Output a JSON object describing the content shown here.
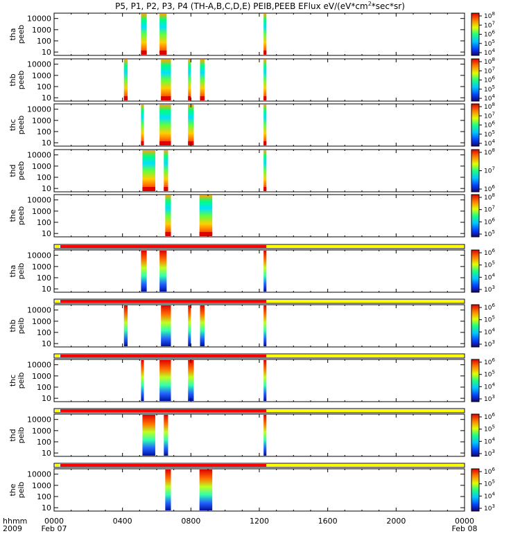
{
  "chart_data": {
    "type": "heatmap",
    "title": "P5, P1, P2, P3, P4 (TH-A,B,C,D,E) PEIB,PEEB EFlux eV/(eV*cm",
    "title_sup": "2",
    "title_tail": "*sec*sr)",
    "x_axis": {
      "label_line1": "hhmm",
      "label_line2": "2009",
      "ticks": [
        {
          "value": 0,
          "label": "0000",
          "sub": "Feb 07"
        },
        {
          "value": 240,
          "label": "0400",
          "sub": ""
        },
        {
          "value": 480,
          "label": "0800",
          "sub": ""
        },
        {
          "value": 720,
          "label": "1200",
          "sub": ""
        },
        {
          "value": 960,
          "label": "1600",
          "sub": ""
        },
        {
          "value": 1200,
          "label": "2000",
          "sub": ""
        },
        {
          "value": 1440,
          "label": "0000",
          "sub": "Feb 08"
        }
      ],
      "range_minutes": [
        0,
        1440
      ]
    },
    "y_axis": {
      "scale": "log",
      "range_eV": [
        5,
        30000
      ],
      "tick_values": [
        10,
        100,
        1000,
        10000
      ],
      "tick_labels": [
        "10",
        "100",
        "1000",
        "10000"
      ]
    },
    "mode_bar": {
      "red_until_minutes": 745,
      "colors": {
        "slow": "#ff0000",
        "fast": "#ffff00"
      }
    },
    "panels": [
      {
        "label1": "tha",
        "label2": "peeb",
        "cbar": [
          "10^4",
          "10^5",
          "10^6",
          "10^7",
          "10^8"
        ],
        "coverage": [
          [
            305,
            325
          ],
          [
            370,
            395
          ],
          [
            735,
            745
          ]
        ]
      },
      {
        "label1": "thb",
        "label2": "peeb",
        "cbar": [
          "10^4",
          "10^5",
          "10^6",
          "10^7",
          "10^8"
        ],
        "coverage": [
          [
            245,
            258
          ],
          [
            375,
            410
          ],
          [
            470,
            480
          ],
          [
            512,
            528
          ],
          [
            735,
            745
          ]
        ]
      },
      {
        "label1": "thc",
        "label2": "peeb",
        "cbar": [
          "10^4",
          "10^5",
          "10^6",
          "10^7",
          "10^8"
        ],
        "coverage": [
          [
            305,
            315
          ],
          [
            370,
            410
          ],
          [
            470,
            490
          ],
          [
            735,
            745
          ]
        ]
      },
      {
        "label1": "thd",
        "label2": "peeb",
        "cbar": [
          "10^6",
          "10^7",
          "10^8"
        ],
        "coverage": [
          [
            310,
            355
          ],
          [
            385,
            400
          ],
          [
            735,
            745
          ]
        ]
      },
      {
        "label1": "the",
        "label2": "peeb",
        "cbar": [
          "10^5",
          "10^6",
          "10^7",
          "10^8"
        ],
        "coverage": [
          [
            390,
            410
          ],
          [
            510,
            555
          ]
        ]
      },
      {
        "label1": "tha",
        "label2": "peib",
        "cbar": [
          "10^3",
          "10^4",
          "10^5",
          "10^6"
        ],
        "coverage": [
          [
            305,
            325
          ],
          [
            370,
            395
          ],
          [
            735,
            745
          ]
        ]
      },
      {
        "label1": "thb",
        "label2": "peib",
        "cbar": [
          "10^3",
          "10^4",
          "10^5",
          "10^6"
        ],
        "coverage": [
          [
            245,
            258
          ],
          [
            375,
            410
          ],
          [
            470,
            480
          ],
          [
            512,
            528
          ],
          [
            735,
            745
          ]
        ]
      },
      {
        "label1": "thc",
        "label2": "peib",
        "cbar": [
          "10^3",
          "10^4",
          "10^5",
          "10^6"
        ],
        "coverage": [
          [
            305,
            315
          ],
          [
            370,
            410
          ],
          [
            470,
            490
          ],
          [
            735,
            745
          ]
        ]
      },
      {
        "label1": "thd",
        "label2": "peib",
        "cbar": [
          "10^3",
          "10^4",
          "10^5",
          "10^6"
        ],
        "coverage": [
          [
            310,
            355
          ],
          [
            385,
            400
          ],
          [
            735,
            745
          ]
        ]
      },
      {
        "label1": "the",
        "label2": "peib",
        "cbar": [
          "10^3",
          "10^4",
          "10^5",
          "10^6"
        ],
        "coverage": [
          [
            390,
            410
          ],
          [
            510,
            555
          ]
        ]
      }
    ]
  }
}
